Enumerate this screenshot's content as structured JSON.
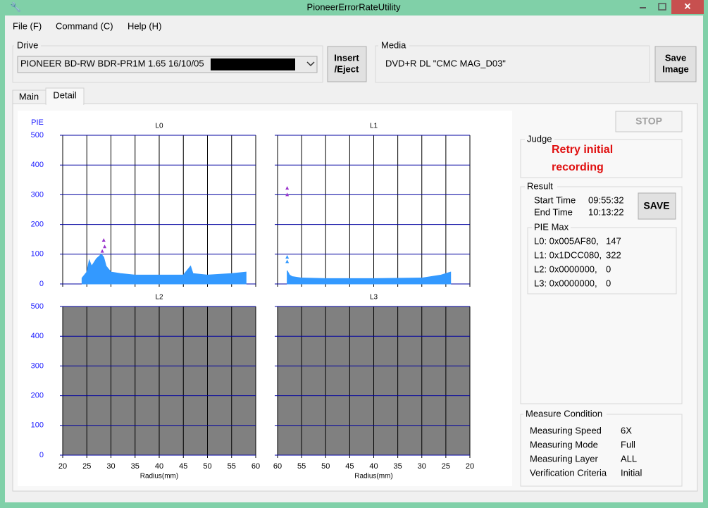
{
  "window": {
    "title": "PioneerErrorRateUtility"
  },
  "menu": [
    "File (F)",
    "Command (C)",
    "Help (H)"
  ],
  "drive": {
    "label": "Drive",
    "selected": "PIONEER BD-RW BDR-PR1M  1.65 16/10/05",
    "insert_button": [
      "Insert",
      "/Eject"
    ]
  },
  "media": {
    "label": "Media",
    "value": "DVD+R DL \"CMC MAG_D03\"",
    "save_button": [
      "Save",
      "Image"
    ]
  },
  "tabs": [
    "Main",
    "Detail"
  ],
  "stop_button": "STOP",
  "judge": {
    "label": "Judge",
    "text": [
      "Retry initial",
      "recording"
    ]
  },
  "result": {
    "label": "Result",
    "rows": [
      [
        "Start Time",
        "09:55:32"
      ],
      [
        "End Time",
        "10:13:22"
      ]
    ],
    "save_button": "SAVE",
    "pie_max": {
      "label": "PIE Max",
      "rows": [
        [
          "L0: 0x005AF80,",
          147
        ],
        [
          "L1: 0x1DCC080,",
          322
        ],
        [
          "L2: 0x0000000,",
          0
        ],
        [
          "L3: 0x0000000,",
          0
        ]
      ]
    }
  },
  "measure_condition": {
    "label": "Measure Condition",
    "rows": [
      [
        "Measuring Speed",
        "6X"
      ],
      [
        "Measuring Mode",
        "Full"
      ],
      [
        "Measuring Layer",
        "ALL"
      ],
      [
        "Verification Criteria",
        "Initial"
      ]
    ]
  },
  "chart_data": [
    {
      "type": "area",
      "title": "L0",
      "ylabel": "PIE",
      "plot_background": "#ffffff",
      "xlim": [
        20,
        60
      ],
      "xticks": [
        20,
        25,
        30,
        35,
        40,
        45,
        50,
        55,
        60
      ],
      "ylim": [
        0,
        500
      ],
      "yticks": [
        0,
        100,
        200,
        300,
        400,
        500
      ],
      "series": [
        {
          "kind": "area",
          "color": "#3399ff",
          "x": [
            24,
            25,
            25.5,
            26,
            27,
            28,
            28.5,
            29,
            30,
            32,
            35,
            40,
            45,
            46.5,
            47,
            50,
            55,
            58
          ],
          "values": [
            20,
            40,
            80,
            60,
            85,
            100,
            90,
            60,
            40,
            35,
            30,
            30,
            30,
            60,
            35,
            30,
            35,
            40
          ]
        },
        {
          "kind": "points",
          "color": "#9933cc",
          "x": [
            28.2,
            28.5,
            28.7
          ],
          "values": [
            110,
            147,
            125
          ]
        }
      ]
    },
    {
      "type": "area",
      "title": "L1",
      "plot_background": "#ffffff",
      "xlim": [
        60,
        20
      ],
      "xticks": [
        60,
        55,
        50,
        45,
        40,
        35,
        30,
        25,
        20
      ],
      "ylim": [
        0,
        500
      ],
      "yticks": [
        0,
        100,
        200,
        300,
        400,
        500
      ],
      "series": [
        {
          "kind": "area",
          "color": "#3399ff",
          "x": [
            58,
            57.5,
            57,
            55,
            50,
            40,
            30,
            26,
            24
          ],
          "values": [
            45,
            30,
            25,
            20,
            18,
            18,
            20,
            30,
            40
          ]
        },
        {
          "kind": "points",
          "color": "#3399ff",
          "x": [
            58,
            58
          ],
          "values": [
            90,
            75
          ]
        },
        {
          "kind": "points",
          "color": "#9933cc",
          "x": [
            58,
            58
          ],
          "values": [
            322,
            300
          ]
        }
      ]
    },
    {
      "type": "area",
      "title": "L2",
      "xlabel": "Radius(mm)",
      "plot_background": "#808080",
      "xlim": [
        20,
        60
      ],
      "xticks": [
        20,
        25,
        30,
        35,
        40,
        45,
        50,
        55,
        60
      ],
      "ylim": [
        0,
        500
      ],
      "yticks": [
        0,
        100,
        200,
        300,
        400,
        500
      ]
    },
    {
      "type": "area",
      "title": "L3",
      "xlabel": "Radius(mm)",
      "plot_background": "#808080",
      "xlim": [
        60,
        20
      ],
      "xticks": [
        60,
        55,
        50,
        45,
        40,
        35,
        30,
        25,
        20
      ],
      "ylim": [
        0,
        500
      ],
      "yticks": [
        0,
        100,
        200,
        300,
        400,
        500
      ]
    }
  ]
}
